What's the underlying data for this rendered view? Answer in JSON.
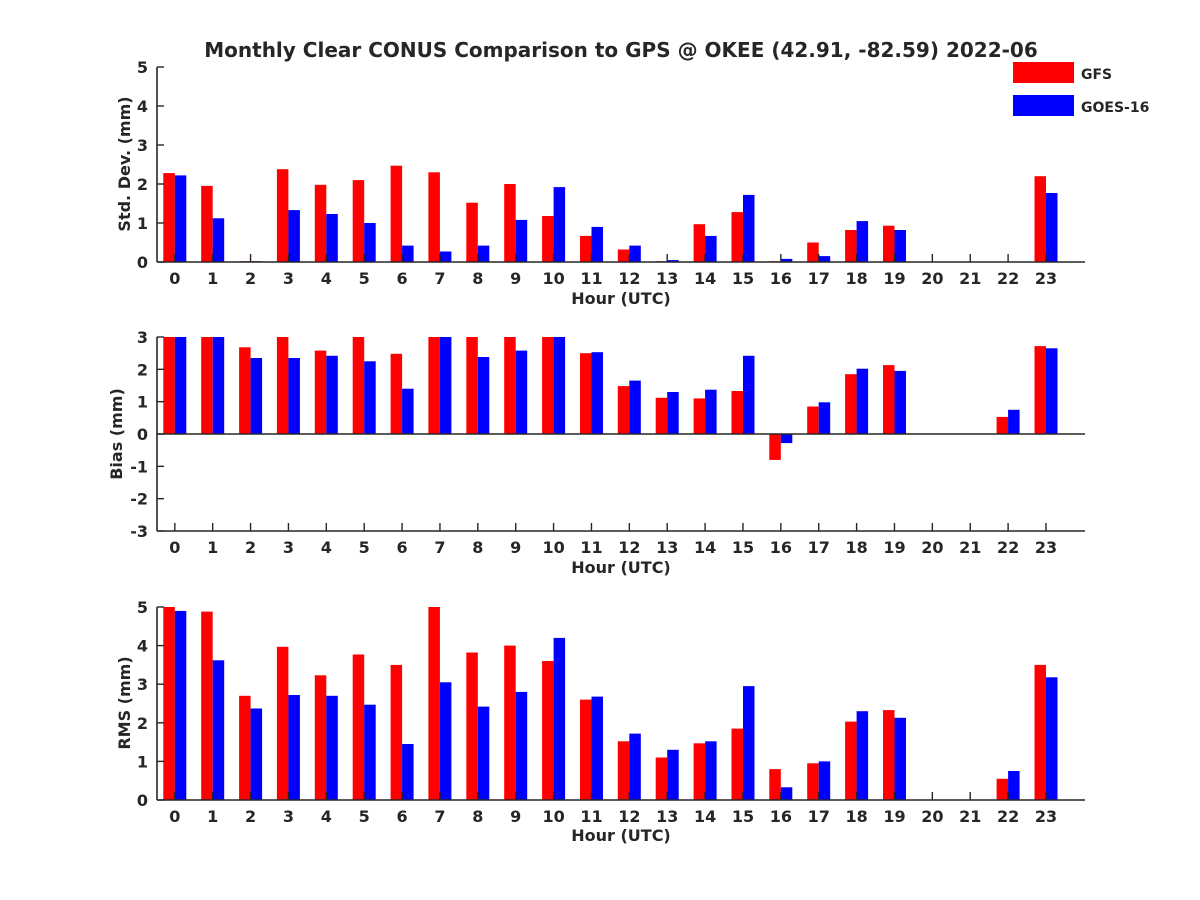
{
  "title": "Monthly Clear CONUS Comparison to GPS @ OKEE (42.91, -82.59) 2022-06",
  "legend": [
    {
      "name": "GFS",
      "color": "#ff0000"
    },
    {
      "name": "GOES-16",
      "color": "#0000ff"
    }
  ],
  "chart_data": [
    {
      "type": "bar",
      "xlabel": "Hour (UTC)",
      "ylabel": "Std. Dev. (mm)",
      "ylim": [
        0,
        5
      ],
      "yticks": [
        "0",
        "1",
        "2",
        "3",
        "4",
        "5"
      ],
      "categories": [
        "0",
        "1",
        "2",
        "3",
        "4",
        "5",
        "6",
        "7",
        "8",
        "9",
        "10",
        "11",
        "12",
        "13",
        "14",
        "15",
        "16",
        "17",
        "18",
        "19",
        "20",
        "21",
        "22",
        "23"
      ],
      "series": [
        {
          "name": "GFS",
          "color": "#ff0000",
          "values": [
            2.28,
            1.95,
            0.02,
            2.38,
            1.98,
            2.1,
            2.47,
            2.3,
            1.52,
            2.0,
            1.18,
            0.67,
            0.32,
            0.02,
            0.97,
            1.28,
            0.02,
            0.5,
            0.82,
            0.93,
            null,
            null,
            null,
            2.2
          ]
        },
        {
          "name": "GOES-16",
          "color": "#0000ff",
          "values": [
            2.22,
            1.12,
            0.02,
            1.33,
            1.23,
            1.0,
            0.42,
            0.27,
            0.42,
            1.08,
            1.92,
            0.9,
            0.42,
            0.05,
            0.67,
            1.72,
            0.08,
            0.15,
            1.05,
            0.82,
            null,
            null,
            null,
            1.77
          ]
        }
      ]
    },
    {
      "type": "bar",
      "xlabel": "Hour (UTC)",
      "ylabel": "Bias (mm)",
      "ylim": [
        -3,
        3
      ],
      "yticks": [
        "-3",
        "-2",
        "-1",
        "0",
        "1",
        "2",
        "3"
      ],
      "categories": [
        "0",
        "1",
        "2",
        "3",
        "4",
        "5",
        "6",
        "7",
        "8",
        "9",
        "10",
        "11",
        "12",
        "13",
        "14",
        "15",
        "16",
        "17",
        "18",
        "19",
        "20",
        "21",
        "22",
        "23"
      ],
      "series": [
        {
          "name": "GFS",
          "color": "#ff0000",
          "values": [
            3.0,
            3.0,
            2.68,
            3.0,
            2.58,
            3.0,
            2.48,
            3.0,
            3.0,
            3.0,
            3.0,
            2.5,
            1.48,
            1.12,
            1.1,
            1.33,
            -0.8,
            0.85,
            1.85,
            2.13,
            null,
            null,
            0.53,
            2.72
          ]
        },
        {
          "name": "GOES-16",
          "color": "#0000ff",
          "values": [
            3.0,
            3.0,
            2.35,
            2.35,
            2.42,
            2.25,
            1.4,
            3.0,
            2.38,
            2.58,
            3.0,
            2.53,
            1.65,
            1.3,
            1.37,
            2.42,
            -0.28,
            0.98,
            2.02,
            1.95,
            null,
            null,
            0.75,
            2.65
          ]
        }
      ]
    },
    {
      "type": "bar",
      "xlabel": "Hour (UTC)",
      "ylabel": "RMS (mm)",
      "ylim": [
        0,
        5
      ],
      "yticks": [
        "0",
        "1",
        "2",
        "3",
        "4",
        "5"
      ],
      "categories": [
        "0",
        "1",
        "2",
        "3",
        "4",
        "5",
        "6",
        "7",
        "8",
        "9",
        "10",
        "11",
        "12",
        "13",
        "14",
        "15",
        "16",
        "17",
        "18",
        "19",
        "20",
        "21",
        "22",
        "23"
      ],
      "series": [
        {
          "name": "GFS",
          "color": "#ff0000",
          "values": [
            5.0,
            4.88,
            2.7,
            3.97,
            3.23,
            3.77,
            3.5,
            5.0,
            3.82,
            4.0,
            3.6,
            2.6,
            1.52,
            1.1,
            1.47,
            1.85,
            0.8,
            0.95,
            2.03,
            2.33,
            null,
            null,
            0.55,
            3.5
          ]
        },
        {
          "name": "GOES-16",
          "color": "#0000ff",
          "values": [
            4.9,
            3.62,
            2.37,
            2.72,
            2.7,
            2.47,
            1.45,
            3.05,
            2.42,
            2.8,
            4.2,
            2.68,
            1.72,
            1.3,
            1.52,
            2.95,
            0.33,
            1.0,
            2.3,
            2.13,
            null,
            null,
            0.75,
            3.18
          ]
        }
      ]
    }
  ]
}
